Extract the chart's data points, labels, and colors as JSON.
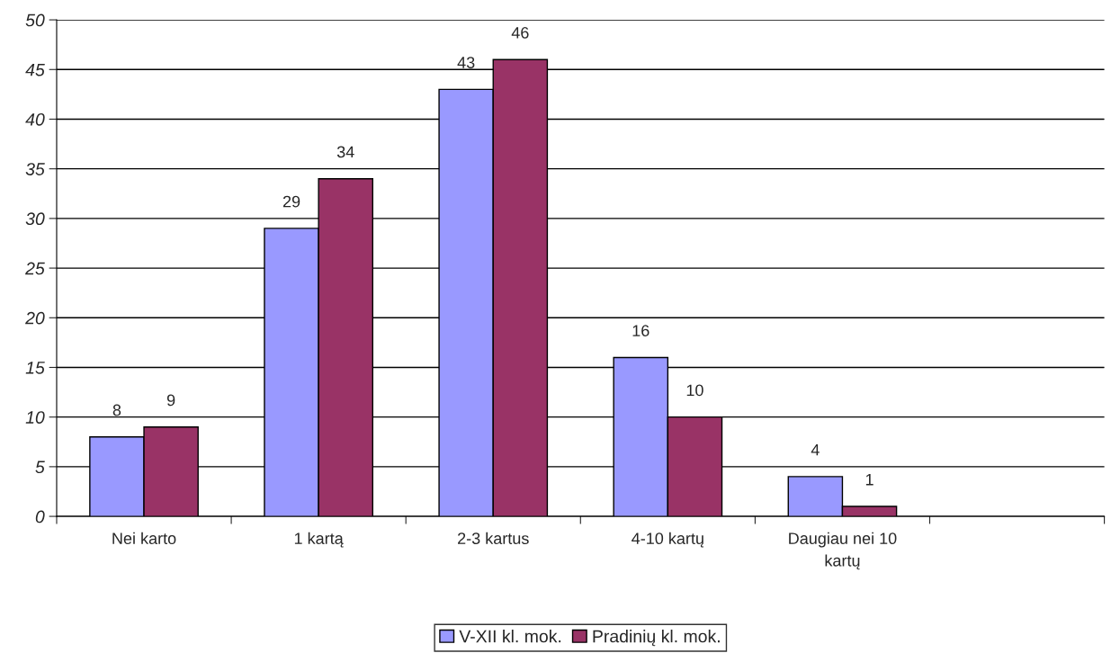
{
  "chart_data": {
    "type": "bar",
    "categories": [
      "Nei karto",
      "1 kartą",
      "2-3 kartus",
      "4-10 kartų",
      "Daugiau nei 10 kartų",
      null
    ],
    "series": [
      {
        "name": "V-XII kl. mok.",
        "color": "#9999ff",
        "values": [
          8,
          29,
          43,
          16,
          4,
          null
        ]
      },
      {
        "name": "Pradinių kl. mok.",
        "color": "#993366",
        "values": [
          9,
          34,
          46,
          10,
          1,
          null
        ]
      }
    ],
    "ylim": [
      0,
      50
    ],
    "yticks": [
      0,
      5,
      10,
      15,
      20,
      25,
      30,
      35,
      40,
      45,
      50
    ],
    "grid": "y",
    "legend": "bottom",
    "data_labels": true
  }
}
